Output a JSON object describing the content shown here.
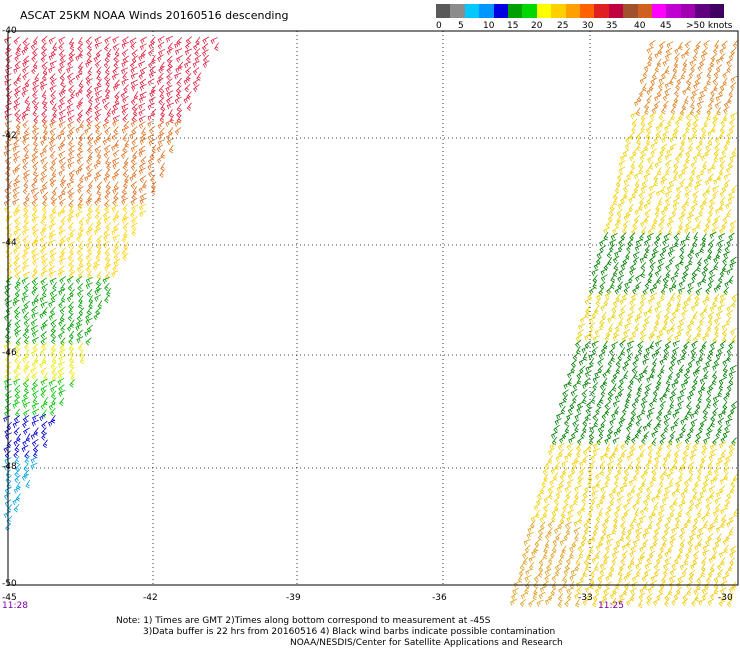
{
  "title": "ASCAT 25KM NOAA Winds 20160516 descending",
  "legend": {
    "colors": [
      "#5a5a5a",
      "#8c8c8c",
      "#00c8ff",
      "#0096ff",
      "#0000e0",
      "#00a000",
      "#00d800",
      "#ffff00",
      "#ffd000",
      "#ffa000",
      "#ff6000",
      "#e02020",
      "#c00040",
      "#a0522d",
      "#d06020",
      "#ff00ff",
      "#c000d0",
      "#a000b0",
      "#600080",
      "#400060"
    ],
    "labels": [
      "0",
      "5",
      "10",
      "15",
      "20",
      "25",
      "30",
      "35",
      "40",
      "45",
      ">50 knots"
    ]
  },
  "axes": {
    "x_ticks": [
      "-45",
      "-42",
      "-39",
      "-36",
      "-33",
      "-30"
    ],
    "y_ticks": [
      "-40",
      "-42",
      "-44",
      "-46",
      "-48",
      "-50"
    ]
  },
  "times": {
    "left": "11:28",
    "right": "11:25"
  },
  "notes": [
    "Note: 1) Times are GMT 2)Times along bottom correspond to measurement at -45S",
    "3)Data buffer is 22 hrs from 20160516 4) Black wind barbs indicate possible contamination",
    "NOAA/NESDIS/Center for Satellite Applications and Research"
  ]
}
